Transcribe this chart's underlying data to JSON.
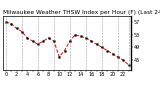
{
  "title": "Milwaukee Weather THSW Index per Hour (F) (Last 24 Hours)",
  "x_values": [
    0,
    1,
    2,
    3,
    4,
    5,
    6,
    7,
    8,
    9,
    10,
    11,
    12,
    13,
    14,
    15,
    16,
    17,
    18,
    19,
    20,
    21,
    22,
    23
  ],
  "y_values": [
    57,
    56.5,
    55,
    54,
    52,
    51,
    50,
    51,
    52,
    51,
    46,
    48,
    51,
    53,
    52.5,
    52,
    51,
    50,
    49,
    48,
    47,
    46,
    45,
    43.5
  ],
  "ylim": [
    42,
    59
  ],
  "yticks": [
    45,
    49,
    53,
    57
  ],
  "ytick_labels": [
    "45",
    "49",
    "53",
    "57"
  ],
  "xticks": [
    0,
    1,
    2,
    3,
    4,
    5,
    6,
    7,
    8,
    9,
    10,
    11,
    12,
    13,
    14,
    15,
    16,
    17,
    18,
    19,
    20,
    21,
    22,
    23
  ],
  "grid_xticks": [
    0,
    3,
    6,
    9,
    12,
    15,
    18,
    21,
    23
  ],
  "line_color": "#ff0000",
  "marker_color": "#000000",
  "bg_color": "#ffffff",
  "plot_bg": "#ffffff",
  "grid_color": "#888888",
  "title_fontsize": 4.2,
  "tick_fontsize": 3.5
}
